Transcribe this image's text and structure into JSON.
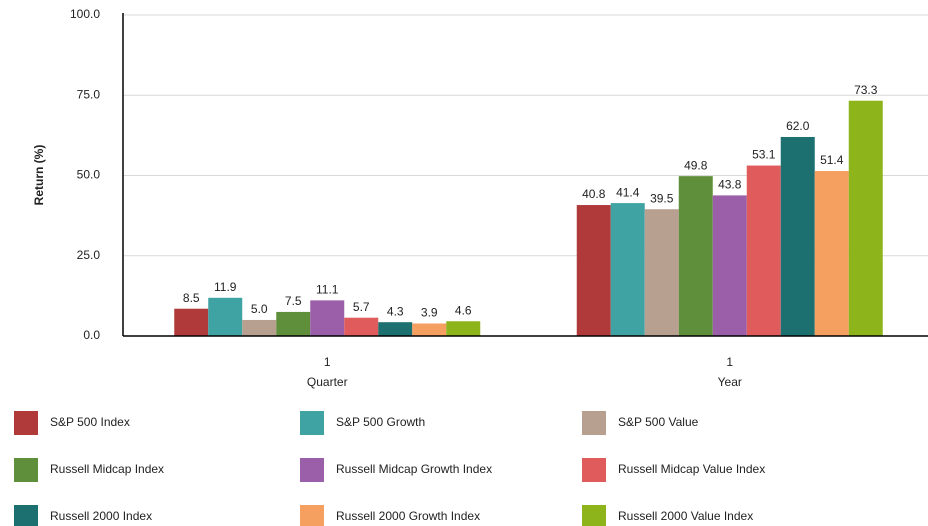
{
  "chart_data": {
    "type": "bar",
    "y_label": "Return (%)",
    "categories": [
      [
        "1",
        "Quarter"
      ],
      [
        "1",
        "Year"
      ]
    ],
    "ylim": [
      0,
      100
    ],
    "yticks": [
      {
        "value": 0,
        "label": "0.0"
      },
      {
        "value": 25,
        "label": "25.0"
      },
      {
        "value": 50,
        "label": "50.0"
      },
      {
        "value": 75,
        "label": "75.0"
      },
      {
        "value": 100,
        "label": "100.0"
      }
    ],
    "grid": true,
    "series": [
      {
        "name": "S&P 500 Index",
        "color": "#b03a3a",
        "values": [
          8.5,
          40.8
        ]
      },
      {
        "name": "S&P 500 Growth",
        "color": "#3fa3a3",
        "values": [
          11.9,
          41.4
        ]
      },
      {
        "name": "S&P 500 Value",
        "color": "#b8a090",
        "values": [
          5,
          39.5
        ],
        "value_labels": [
          "5.0",
          "39.5"
        ]
      },
      {
        "name": "Russell Midcap Index",
        "color": "#5f8f3a",
        "values": [
          7.5,
          49.8
        ]
      },
      {
        "name": "Russell Midcap Growth Index",
        "color": "#9a5fa8",
        "values": [
          11.1,
          43.8
        ]
      },
      {
        "name": "Russell Midcap Value Index",
        "color": "#e05c5c",
        "values": [
          5.7,
          53.1
        ]
      },
      {
        "name": "Russell 2000 Index",
        "color": "#1d7070",
        "values": [
          4.3,
          62
        ],
        "value_labels": [
          "4.3",
          "62.0"
        ]
      },
      {
        "name": "Russell 2000 Growth Index",
        "color": "#f5a060",
        "values": [
          3.9,
          51.4
        ]
      },
      {
        "name": "Russell 2000 Value Index",
        "color": "#8db41a",
        "values": [
          4.6,
          73.3
        ]
      }
    ]
  }
}
